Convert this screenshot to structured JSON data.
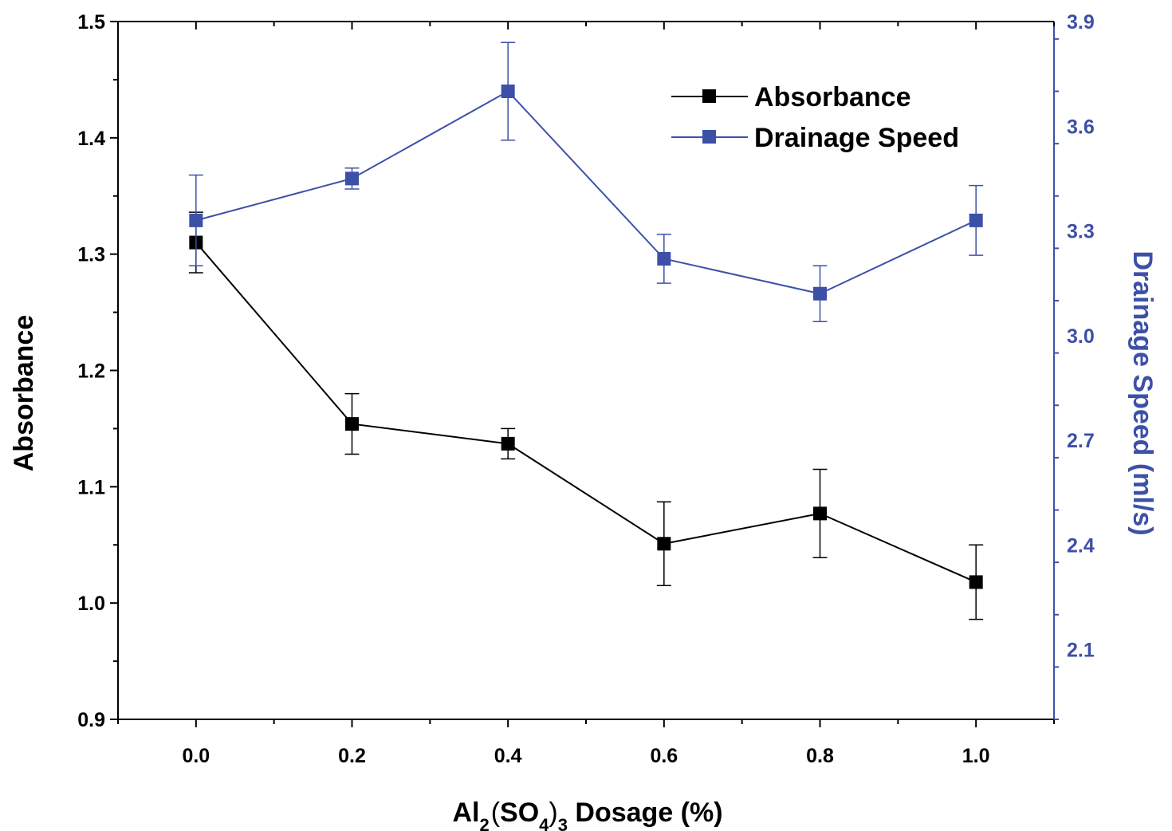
{
  "colors": {
    "absorbance": "#000000",
    "drainage": "#3d50a8",
    "right_axis": "#3d50a8",
    "frame": "#000000"
  },
  "chart_data": {
    "type": "line",
    "xlabel": {
      "prefix": "Al",
      "sub1": "2",
      "open_paren": "(",
      "mid": "SO",
      "sub2": "4",
      "close_paren": ")",
      "sub3": "3",
      "suffix": " Dosage (%)"
    },
    "ylabel_left": "Absorbance",
    "ylabel_right": "Drainage Speed (ml/s)",
    "xlim": [
      -0.1,
      1.1
    ],
    "ylim_left": [
      0.9,
      1.5
    ],
    "ylim_right": [
      1.9,
      3.9
    ],
    "x_ticks": [
      "0.0",
      "0.2",
      "0.4",
      "0.6",
      "0.8",
      "1.0"
    ],
    "x_tick_values": [
      0,
      0.2,
      0.4,
      0.6,
      0.8,
      1.0
    ],
    "y_left_ticks": [
      "0.9",
      "1.0",
      "1.1",
      "1.2",
      "1.3",
      "1.4",
      "1.5"
    ],
    "y_left_tick_values": [
      0.9,
      1.0,
      1.1,
      1.2,
      1.3,
      1.4,
      1.5
    ],
    "y_right_ticks": [
      "2.1",
      "2.4",
      "2.7",
      "3.0",
      "3.3",
      "3.6",
      "3.9"
    ],
    "y_right_tick_values": [
      2.1,
      2.4,
      2.7,
      3.0,
      3.3,
      3.6,
      3.9
    ],
    "grid": false,
    "legend_position": "top-right",
    "series": [
      {
        "name": "Absorbance",
        "axis": "left",
        "x": [
          0.0,
          0.2,
          0.4,
          0.6,
          0.8,
          1.0
        ],
        "y": [
          1.31,
          1.154,
          1.137,
          1.051,
          1.077,
          1.018
        ],
        "err": [
          0.026,
          0.026,
          0.013,
          0.036,
          0.038,
          0.032
        ]
      },
      {
        "name": "Drainage Speed",
        "axis": "right",
        "x": [
          0.0,
          0.2,
          0.4,
          0.6,
          0.8,
          1.0
        ],
        "y": [
          3.33,
          3.45,
          3.7,
          3.22,
          3.12,
          3.33
        ],
        "err": [
          0.13,
          0.03,
          0.14,
          0.07,
          0.08,
          0.1
        ]
      }
    ]
  }
}
